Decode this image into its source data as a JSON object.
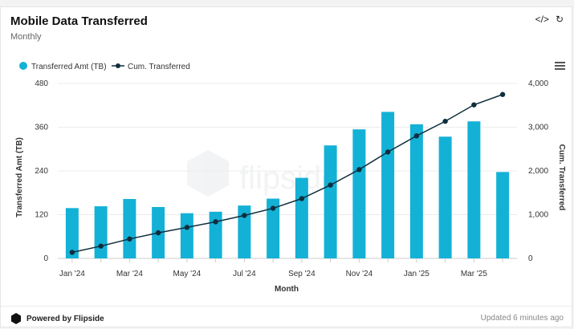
{
  "header": {
    "title": "Mobile Data Transferred",
    "subtitle": "Monthly"
  },
  "icons": {
    "embed": "code-icon",
    "refresh": "refresh-icon",
    "menu": "hamburger-menu-icon"
  },
  "footer": {
    "powered": "Powered by Flipside",
    "updated": "Updated 6 minutes ago"
  },
  "watermark": "flipside",
  "colors": {
    "bar": "#14b1d6",
    "line": "#0f2e3d",
    "axis_text": "#333333"
  },
  "chart_data": {
    "type": "bar",
    "categories": [
      "Jan '24",
      "Feb '24",
      "Mar '24",
      "Apr '24",
      "May '24",
      "Jun '24",
      "Jul '24",
      "Aug '24",
      "Sep '24",
      "Oct '24",
      "Nov '24",
      "Dec '24",
      "Jan '25",
      "Feb '25",
      "Mar '25",
      "Apr '25"
    ],
    "x_tick_labels": [
      "Jan '24",
      "",
      "Mar '24",
      "",
      "May '24",
      "",
      "Jul '24",
      "",
      "Sep '24",
      "",
      "Nov '24",
      "",
      "Jan '25",
      "",
      "Mar '25",
      ""
    ],
    "series": [
      {
        "name": "Transferred Amt (TB)",
        "kind": "bar",
        "axis": "left",
        "values": [
          138,
          143,
          163,
          141,
          124,
          128,
          145,
          164,
          221,
          310,
          354,
          402,
          368,
          334,
          376,
          237
        ]
      },
      {
        "name": "Cum. Transferred",
        "kind": "line",
        "axis": "right",
        "values": [
          138,
          281,
          444,
          585,
          709,
          837,
          982,
          1146,
          1367,
          1677,
          2031,
          2433,
          2801,
          3135,
          3511,
          3748
        ]
      }
    ],
    "xlabel": "Month",
    "ylabel": "Transferred Amt (TB)",
    "y2label": "Cum. Transferred",
    "ylim": [
      0,
      480
    ],
    "yticks": [
      "0",
      "120",
      "240",
      "360",
      "480"
    ],
    "y2lim": [
      0,
      4000
    ],
    "y2ticks": [
      "0",
      "1,000",
      "2,000",
      "3,000",
      "4,000"
    ],
    "legend": "top-left",
    "grid": true
  }
}
